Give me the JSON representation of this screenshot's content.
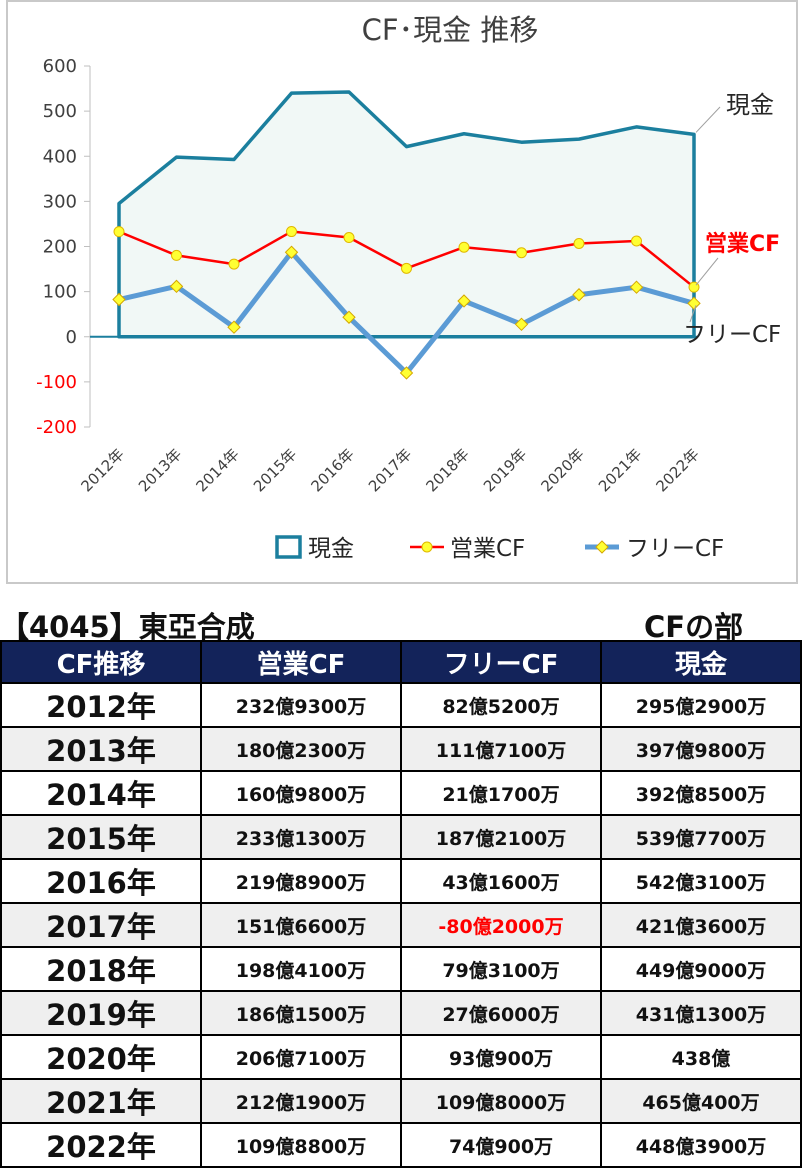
{
  "chart_data": {
    "type": "line",
    "title": "CF･現金 推移",
    "categories": [
      "2012年",
      "2013年",
      "2014年",
      "2015年",
      "2016年",
      "2017年",
      "2018年",
      "2019年",
      "2020年",
      "2021年",
      "2022年"
    ],
    "series": [
      {
        "name": "現金",
        "style": "area",
        "color": "#1b7f9e",
        "values": [
          295.29,
          397.98,
          392.85,
          539.77,
          542.31,
          421.36,
          449.9,
          431.13,
          438.0,
          465.04,
          448.39
        ]
      },
      {
        "name": "営業CF",
        "style": "line",
        "color": "#ff0000",
        "values": [
          232.93,
          180.23,
          160.98,
          233.13,
          219.89,
          151.66,
          198.41,
          186.15,
          206.71,
          212.19,
          109.88
        ]
      },
      {
        "name": "フリーCF",
        "style": "line",
        "color": "#5b9bd5",
        "values": [
          82.52,
          111.71,
          21.17,
          187.21,
          43.16,
          -80.2,
          79.31,
          27.6,
          93.09,
          109.8,
          74.09
        ]
      }
    ],
    "ylim": [
      -200,
      600
    ],
    "yticks": [
      600,
      500,
      400,
      300,
      200,
      100,
      0,
      -100,
      -200
    ],
    "negative_tick_color": "#ff0000",
    "legend_position": "bottom",
    "end_labels": [
      "現金",
      "営業CF",
      "フリーCF"
    ],
    "grid": false
  },
  "heading": {
    "company": "【4045】東亞合成",
    "section": "CFの部"
  },
  "table": {
    "headers": [
      "CF推移",
      "営業CF",
      "フリーCF",
      "現金"
    ],
    "rows": [
      {
        "year": "2012年",
        "op": "232億9300万",
        "free": "82億5200万",
        "cash": "295億2900万"
      },
      {
        "year": "2013年",
        "op": "180億2300万",
        "free": "111億7100万",
        "cash": "397億9800万"
      },
      {
        "year": "2014年",
        "op": "160億9800万",
        "free": "21億1700万",
        "cash": "392億8500万"
      },
      {
        "year": "2015年",
        "op": "233億1300万",
        "free": "187億2100万",
        "cash": "539億7700万"
      },
      {
        "year": "2016年",
        "op": "219億8900万",
        "free": "43億1600万",
        "cash": "542億3100万"
      },
      {
        "year": "2017年",
        "op": "151億6600万",
        "free": "-80億2000万",
        "cash": "421億3600万"
      },
      {
        "year": "2018年",
        "op": "198億4100万",
        "free": "79億3100万",
        "cash": "449億9000万"
      },
      {
        "year": "2019年",
        "op": "186億1500万",
        "free": "27億6000万",
        "cash": "431億1300万"
      },
      {
        "year": "2020年",
        "op": "206億7100万",
        "free": "93億900万",
        "cash": "438億"
      },
      {
        "year": "2021年",
        "op": "212億1900万",
        "free": "109億8000万",
        "cash": "465億400万"
      },
      {
        "year": "2022年",
        "op": "109億8800万",
        "free": "74億900万",
        "cash": "448億3900万"
      }
    ]
  }
}
